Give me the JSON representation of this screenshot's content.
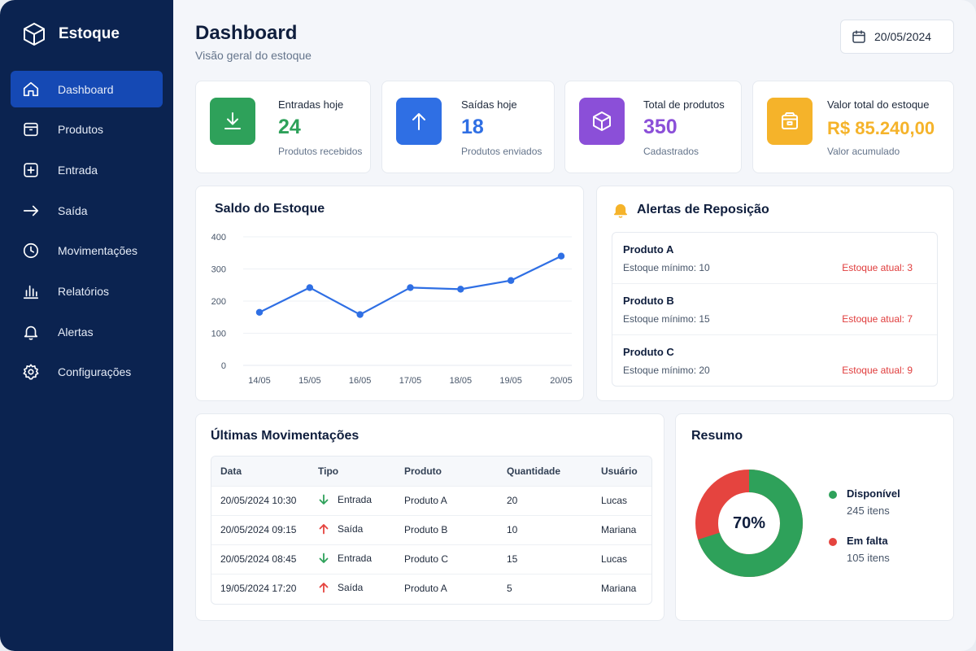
{
  "brand": {
    "name": "Estoque"
  },
  "sidebar": {
    "items": [
      {
        "label": "Dashboard",
        "icon": "home-icon",
        "active": true
      },
      {
        "label": "Produtos",
        "icon": "box-icon"
      },
      {
        "label": "Entrada",
        "icon": "plus-square-icon"
      },
      {
        "label": "Saída",
        "icon": "arrow-right-icon"
      },
      {
        "label": "Movimentações",
        "icon": "clock-icon"
      },
      {
        "label": "Relatórios",
        "icon": "bar-chart-icon"
      },
      {
        "label": "Alertas",
        "icon": "bell-icon"
      },
      {
        "label": "Configurações",
        "icon": "gear-icon"
      }
    ]
  },
  "header": {
    "title": "Dashboard",
    "subtitle": "Visão geral do estoque",
    "date": "20/05/2024"
  },
  "stats": [
    {
      "title": "Entradas hoje",
      "value": "24",
      "desc": "Produtos recebidos",
      "color": "#2ea15a",
      "icon": "download-icon"
    },
    {
      "title": "Saídas hoje",
      "value": "18",
      "desc": "Produtos enviados",
      "color": "#2f6fe4",
      "icon": "arrow-up-icon"
    },
    {
      "title": "Total de produtos",
      "value": "350",
      "desc": "Cadastrados",
      "color": "#8b4fd8",
      "icon": "box-icon"
    },
    {
      "title": "Valor total do estoque",
      "value": "R$ 85.240,00",
      "desc": "Valor acumulado",
      "color": "#f5b32a",
      "icon": "cash-box-icon"
    }
  ],
  "chart": {
    "title": "Saldo do Estoque"
  },
  "chart_data": {
    "type": "line",
    "title": "Saldo do Estoque",
    "categories": [
      "14/05",
      "15/05",
      "16/05",
      "17/05",
      "18/05",
      "19/05",
      "20/05"
    ],
    "values": [
      165,
      242,
      158,
      242,
      237,
      264,
      340
    ],
    "ylim": [
      0,
      400
    ],
    "yticks": [
      0,
      100,
      200,
      300,
      400
    ],
    "grid": true,
    "color": "#2f6fe4"
  },
  "alerts": {
    "title": "Alertas de Reposição",
    "items": [
      {
        "name": "Produto A",
        "min": "Estoque mínimo: 10",
        "current": "Estoque atual: 3"
      },
      {
        "name": "Produto B",
        "min": "Estoque mínimo: 15",
        "current": "Estoque atual: 7"
      },
      {
        "name": "Produto C",
        "min": "Estoque mínimo: 20",
        "current": "Estoque atual: 9"
      }
    ]
  },
  "movements": {
    "title": "Últimas Movimentações",
    "columns": [
      "Data",
      "Tipo",
      "Produto",
      "Quantidade",
      "Usuário"
    ],
    "rows": [
      {
        "date": "20/05/2024 10:30",
        "type": "Entrada",
        "direction": "in",
        "product": "Produto A",
        "qty": "20",
        "user": "Lucas"
      },
      {
        "date": "20/05/2024 09:15",
        "type": "Saída",
        "direction": "out",
        "product": "Produto B",
        "qty": "10",
        "user": "Mariana"
      },
      {
        "date": "20/05/2024 08:45",
        "type": "Entrada",
        "direction": "in",
        "product": "Produto C",
        "qty": "15",
        "user": "Lucas"
      },
      {
        "date": "19/05/2024 17:20",
        "type": "Saída",
        "direction": "out",
        "product": "Produto A",
        "qty": "5",
        "user": "Mariana"
      }
    ]
  },
  "summary": {
    "title": "Resumo",
    "percent_label": "70%",
    "available_fraction": 0.7,
    "available": {
      "label": "Disponível",
      "count": "245 itens",
      "color": "#2ea15a"
    },
    "missing": {
      "label": "Em falta",
      "count": "105 itens",
      "color": "#e5443f"
    }
  }
}
